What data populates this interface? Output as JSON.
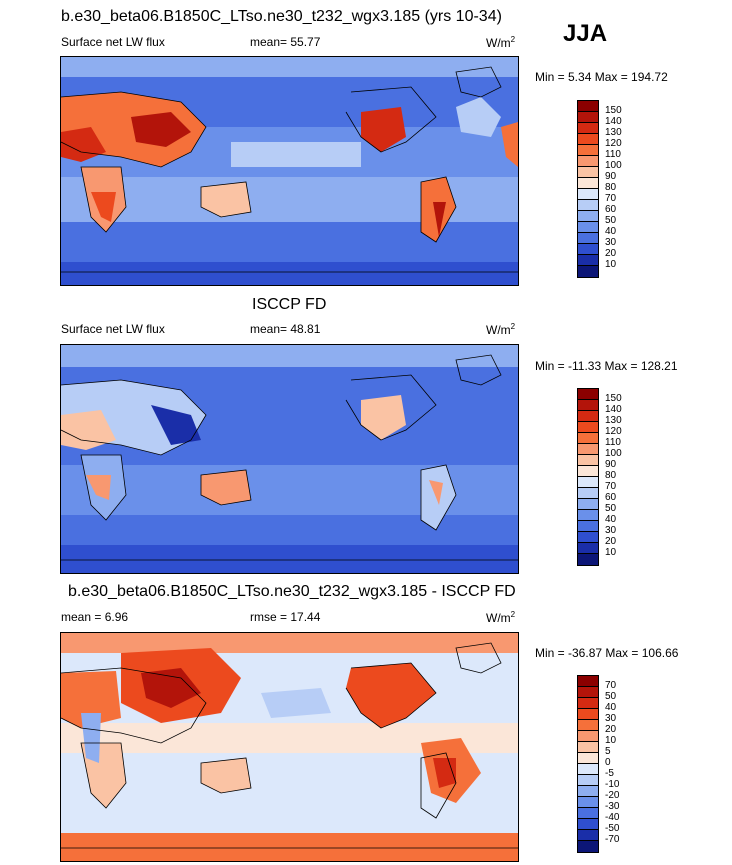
{
  "season": "JJA",
  "panels": [
    {
      "id": "model",
      "title": "b.e30_beta06.B1850C_LTso.ne30_t232_wgx3.185 (yrs 10-34)",
      "left_label": "Surface net LW flux",
      "center_label": "mean=  55.77",
      "units": "W/m",
      "units_sup": "2",
      "minmax": "Min =   5.34 Max = 194.72",
      "levels": [
        "150",
        "140",
        "130",
        "120",
        "110",
        "100",
        "90",
        "80",
        "70",
        "60",
        "50",
        "40",
        "30",
        "20",
        "10"
      ],
      "colors": [
        "#8b0000",
        "#b3140a",
        "#d42a12",
        "#ec4a1e",
        "#f5703a",
        "#f89870",
        "#fac3a4",
        "#fbe6d8",
        "#dce8fb",
        "#b7cdf6",
        "#8eaef0",
        "#6a90ea",
        "#4a70e0",
        "#2f4fcf",
        "#1a2ea8",
        "#0c1677"
      ]
    },
    {
      "id": "obs",
      "title": "ISCCP FD",
      "left_label": "Surface net LW flux",
      "center_label": "mean=  48.81",
      "units": "W/m",
      "units_sup": "2",
      "minmax": "Min = -11.33 Max = 128.21",
      "levels": [
        "150",
        "140",
        "130",
        "120",
        "110",
        "100",
        "90",
        "80",
        "70",
        "60",
        "50",
        "40",
        "30",
        "20",
        "10"
      ],
      "colors": [
        "#8b0000",
        "#b3140a",
        "#d42a12",
        "#ec4a1e",
        "#f5703a",
        "#f89870",
        "#fac3a4",
        "#fbe6d8",
        "#dce8fb",
        "#b7cdf6",
        "#8eaef0",
        "#6a90ea",
        "#4a70e0",
        "#2f4fcf",
        "#1a2ea8",
        "#0c1677"
      ]
    },
    {
      "id": "diff",
      "title": "b.e30_beta06.B1850C_LTso.ne30_t232_wgx3.185 - ISCCP FD",
      "left_label": "mean =   6.96",
      "center_label": "rmse =  17.44",
      "units": "W/m",
      "units_sup": "2",
      "minmax": "Min = -36.87 Max = 106.66",
      "levels": [
        "70",
        "50",
        "40",
        "30",
        "20",
        "10",
        "5",
        "0",
        "-5",
        "-10",
        "-20",
        "-30",
        "-40",
        "-50",
        "-70"
      ],
      "colors": [
        "#8b0000",
        "#b3140a",
        "#d42a12",
        "#ec4a1e",
        "#f5703a",
        "#f89870",
        "#fac3a4",
        "#fbe6d8",
        "#dce8fb",
        "#b7cdf6",
        "#8eaef0",
        "#6a90ea",
        "#4a70e0",
        "#2f4fcf",
        "#1a2ea8",
        "#0c1677"
      ]
    }
  ]
}
